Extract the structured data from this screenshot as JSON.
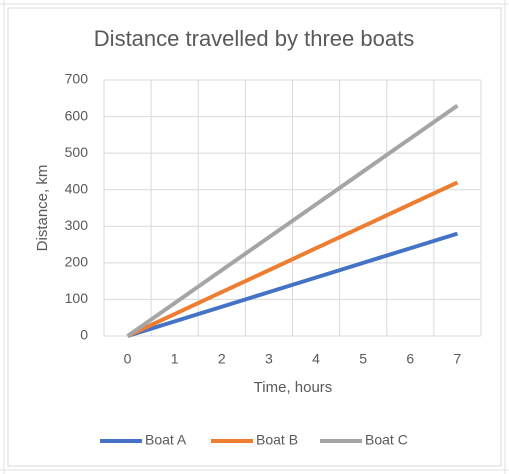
{
  "chart_data": {
    "type": "line",
    "title": "Distance travelled by three boats",
    "x_label": "Time, hours",
    "y_label": "Distance, km",
    "categories": [
      "0",
      "1",
      "2",
      "3",
      "4",
      "5",
      "6",
      "7"
    ],
    "series": [
      {
        "name": "Boat A",
        "color": "#4472c4",
        "values": [
          0,
          40,
          80,
          120,
          160,
          200,
          240,
          280
        ]
      },
      {
        "name": "Boat B",
        "color": "#ed7d31",
        "values": [
          0,
          60,
          120,
          180,
          240,
          300,
          360,
          420
        ]
      },
      {
        "name": "Boat C",
        "color": "#a5a5a5",
        "values": [
          0,
          90,
          180,
          270,
          360,
          450,
          540,
          630
        ]
      }
    ],
    "ylim": [
      0,
      700
    ],
    "yticks": [
      0,
      100,
      200,
      300,
      400,
      500,
      600,
      700
    ],
    "grid": true,
    "legend": "bottom"
  }
}
